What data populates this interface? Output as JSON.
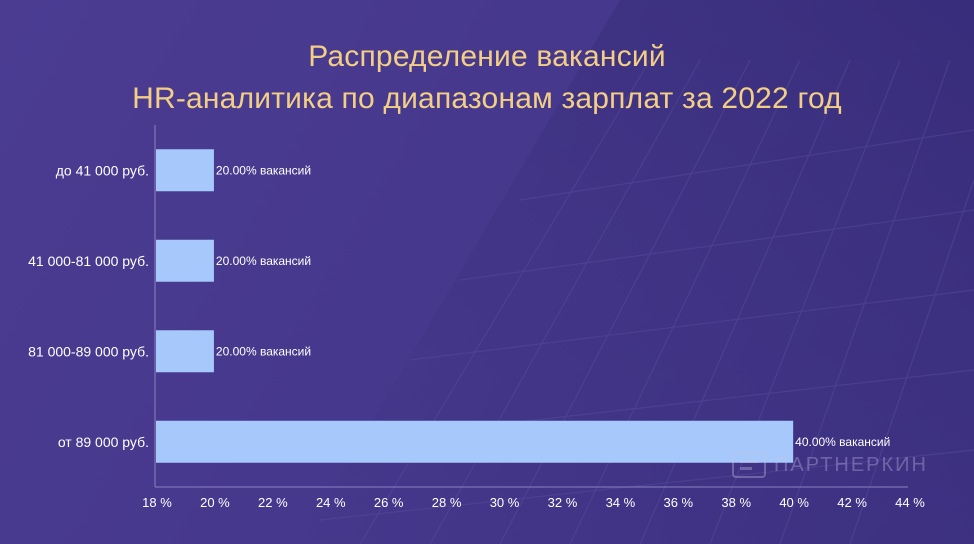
{
  "chart_data": {
    "type": "bar",
    "orientation": "horizontal",
    "title": "Распределение вакансий",
    "subtitle": "HR-аналитика по диапазонам зарплат за 2022 год",
    "categories": [
      "до 41 000 руб.",
      "41 000-81 000 руб.",
      "81 000-89 000 руб.",
      "от 89 000 руб."
    ],
    "values": [
      20,
      20,
      20,
      40
    ],
    "data_labels": [
      "20.00% вакансий",
      "20.00% вакансий",
      "20.00% вакансий",
      "40.00% вакансий"
    ],
    "xlim": [
      18,
      44
    ],
    "xticks": [
      "18 %",
      "20 %",
      "22 %",
      "24 %",
      "26 %",
      "28 %",
      "30 %",
      "32 %",
      "34 %",
      "36 %",
      "38 %",
      "40 %",
      "42 %",
      "44 %"
    ],
    "xtick_values": [
      18,
      20,
      22,
      24,
      26,
      28,
      30,
      32,
      34,
      36,
      38,
      40,
      42,
      44
    ],
    "grid": false,
    "legend": "none",
    "colors": {
      "bar": "#a6c8fb",
      "title": "#f3cf86",
      "text": "#ffffff",
      "axis": "#8a82bf"
    }
  },
  "watermark": {
    "text": "ПАРТНЕРКИН",
    "icon": "partnerkin-logo-icon"
  }
}
